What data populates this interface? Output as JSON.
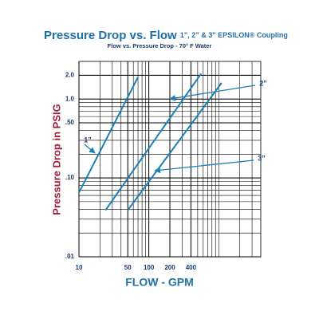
{
  "chart_data": {
    "type": "line",
    "title": "Pressure Drop vs. Flow",
    "title_suffix": "1”, 2” & 3” EPSILON® Coupling",
    "subtitle": "Flow vs. Pressure Drop - 70° F Water",
    "x_label": "FLOW - GPM",
    "y_label": "Pressure Drop in PSIG",
    "log_x": true,
    "log_y": true,
    "grid": true,
    "minor_grid": true,
    "xlim": [
      10,
      4000
    ],
    "ylim": [
      0.01,
      3
    ],
    "xticks": [
      10,
      50,
      100,
      200,
      400
    ],
    "yticks": [
      {
        "value": 0.01,
        "label": ".01"
      },
      {
        "value": 0.1,
        "label": ".10"
      },
      {
        "value": 0.5,
        "label": ".50"
      },
      {
        "value": 1,
        "label": "1.0"
      },
      {
        "value": 2,
        "label": "2.0"
      }
    ],
    "series": [
      {
        "name": "1”",
        "color": "#1a7fb5",
        "x": [
          10,
          70
        ],
        "values": [
          0.065,
          1.9
        ]
      },
      {
        "name": "2”",
        "color": "#1a7fb5",
        "x": [
          24,
          560
        ],
        "values": [
          0.039,
          2.1
        ]
      },
      {
        "name": "3”",
        "color": "#1a7fb5",
        "x": [
          50,
          1100
        ],
        "values": [
          0.039,
          1.6
        ]
      }
    ]
  }
}
